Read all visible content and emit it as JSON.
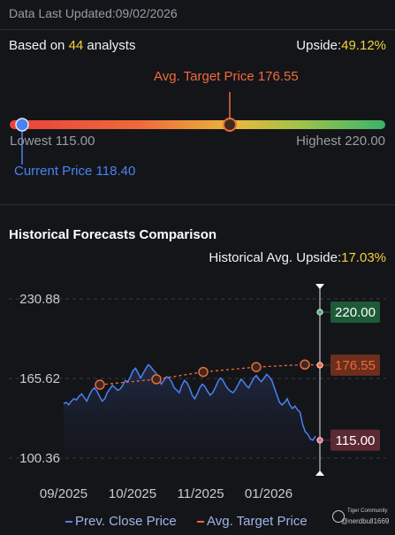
{
  "header": {
    "last_updated_label": "Data Last Updated:",
    "last_updated_date": "09/02/2026"
  },
  "consensus": {
    "based_on_prefix": "Based on ",
    "analyst_count": "44",
    "based_on_suffix": " analysts",
    "upside_label": "Upside:",
    "upside_value": "49.12%"
  },
  "price_range": {
    "avg_target_label": "Avg. Target Price 176.55",
    "lowest_label": "Lowest 115.00",
    "highest_label": "Highest 220.00",
    "current_label": "Current Price 118.40",
    "low": 115.0,
    "high": 220.0,
    "current": 118.4,
    "avg_target": 176.55
  },
  "history": {
    "title": "Historical Forecasts Comparison",
    "upside_label": "Historical Avg. Upside:",
    "upside_value": "17.03%"
  },
  "legend": {
    "prev_close": "Prev. Close Price",
    "avg_target": "Avg. Target Price"
  },
  "watermark": {
    "line1": "Tiger Community",
    "line2": "@nerdbull1669"
  },
  "colors": {
    "accent_yellow": "#f3d13b",
    "target_orange": "#f06a3a",
    "price_blue": "#4a82f0",
    "high_green": "#1d5a36",
    "target_box": "#6b2f1c",
    "low_box": "#5c2a33"
  },
  "chart_data": {
    "type": "line",
    "title": "Historical Forecasts Comparison",
    "x_tick_labels": [
      "09/2025",
      "10/2025",
      "11/2025",
      "01/2026"
    ],
    "y_tick_labels": [
      "230.88",
      "165.62",
      "100.36"
    ],
    "ylim": [
      100.36,
      230.88
    ],
    "grid": true,
    "legend_position": "bottom",
    "series": [
      {
        "name": "Prev. Close Price",
        "values": [
          145,
          146,
          144,
          147,
          149,
          148,
          151,
          153,
          150,
          147,
          152,
          156,
          158,
          155,
          151,
          147,
          149,
          154,
          157,
          160,
          158,
          156,
          157,
          160,
          164,
          163,
          167,
          172,
          174,
          170,
          166,
          170,
          174,
          177,
          175,
          172,
          170,
          165,
          161,
          164,
          167,
          166,
          163,
          158,
          156,
          154,
          160,
          164,
          162,
          158,
          152,
          149,
          153,
          158,
          161,
          159,
          155,
          152,
          154,
          158,
          163,
          166,
          164,
          160,
          157,
          155,
          154,
          157,
          161,
          165,
          163,
          160,
          158,
          162,
          166,
          168,
          165,
          163,
          166,
          169,
          167,
          164,
          158,
          152,
          146,
          144,
          146,
          149,
          144,
          141,
          143,
          140,
          138,
          128,
          122,
          120,
          116,
          115,
          118.4
        ]
      },
      {
        "name": "Avg. Target Price",
        "values": [
          160.5,
          165.0,
          171.0,
          175.0,
          177.0,
          176.55
        ]
      }
    ],
    "markers": {
      "high": 220.0,
      "avg_target": 176.55,
      "low": 115.0,
      "high_label": "220.00",
      "avg_target_label": "176.55",
      "low_label": "115.00"
    }
  }
}
